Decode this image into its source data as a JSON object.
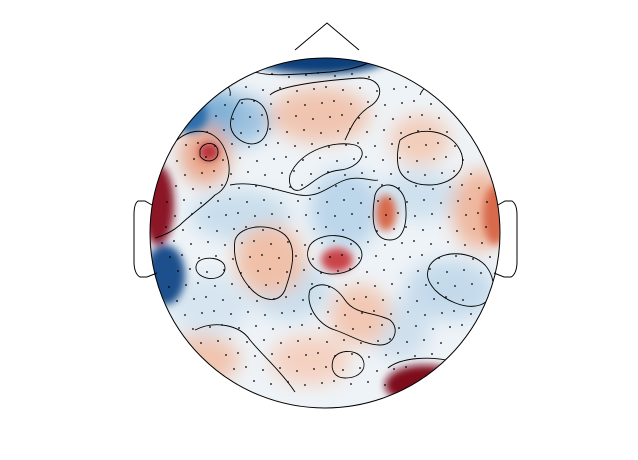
{
  "figure": {
    "type": "eeg-topomap",
    "colormap": "RdBu_r",
    "colors": {
      "strong_negative": "#0b3f7a",
      "negative": "#4b8fc4",
      "mild_negative": "#c9deec",
      "neutral": "#f2f4f6",
      "mild_positive": "#f1c2ab",
      "positive": "#d8694c",
      "strong_positive": "#7e0a1c",
      "outline": "#000000"
    },
    "contours": {
      "zero_line": "solid",
      "negative_lines": "dashed"
    },
    "sensor_marker": "dot"
  }
}
